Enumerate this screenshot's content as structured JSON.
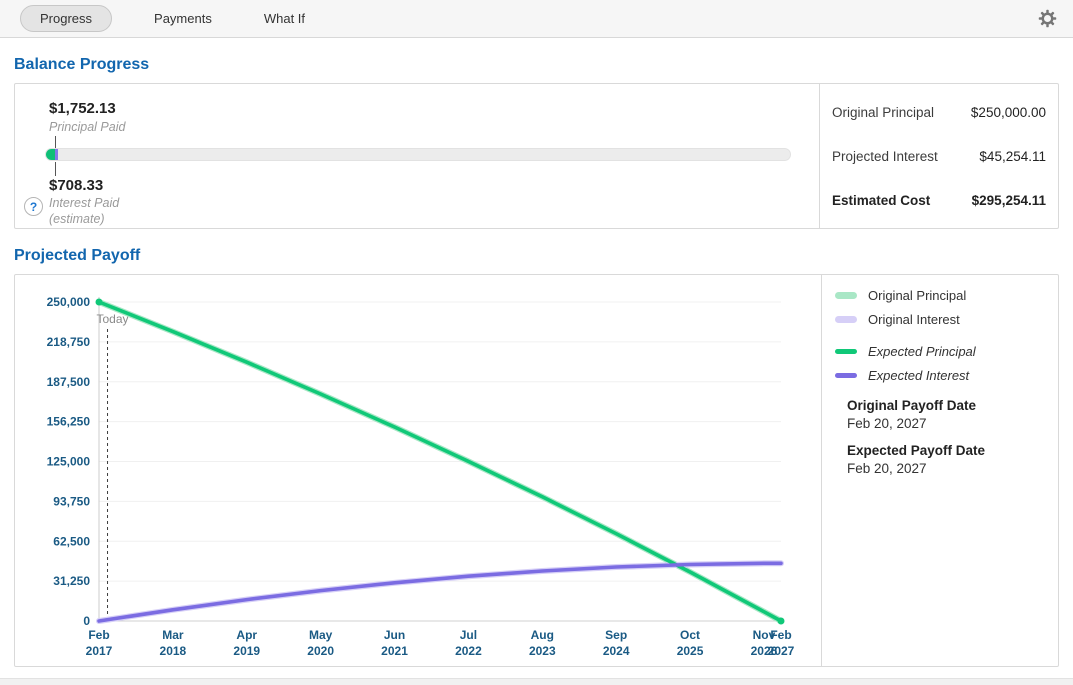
{
  "topbar": {
    "tabs": [
      {
        "label": "Progress",
        "active": true
      },
      {
        "label": "Payments",
        "active": false
      },
      {
        "label": "What If",
        "active": false
      }
    ],
    "gear_icon": "settings-gear"
  },
  "balance_progress": {
    "title": "Balance Progress",
    "principal_paid": {
      "value": "$1,752.13",
      "label": "Principal Paid"
    },
    "interest_paid": {
      "value": "$708.33",
      "label": "Interest Paid",
      "label2": "(estimate)"
    },
    "help_icon": "?",
    "bar_colors": {
      "principal": "#0fbf77",
      "interest": "#8479e8",
      "track": "#ececec"
    },
    "summary": [
      {
        "label": "Original Principal",
        "value": "$250,000.00",
        "bold": false
      },
      {
        "label": "Projected Interest",
        "value": "$45,254.11",
        "bold": false
      },
      {
        "label": "Estimated Cost",
        "value": "$295,254.11",
        "bold": true
      }
    ]
  },
  "projected_payoff": {
    "title": "Projected Payoff",
    "legend": [
      {
        "label": "Original Principal",
        "color": "#a9e7c6",
        "style": "original"
      },
      {
        "label": "Original Interest",
        "color": "#d6cff7",
        "style": "original"
      },
      {
        "label": "Expected Principal",
        "color": "#10c878",
        "style": "expected"
      },
      {
        "label": "Expected Interest",
        "color": "#7b6ce2",
        "style": "expected"
      }
    ],
    "original_payoff": {
      "label": "Original Payoff Date",
      "value": "Feb 20, 2027"
    },
    "expected_payoff": {
      "label": "Expected Payoff Date",
      "value": "Feb 20, 2027"
    }
  },
  "chart_data": {
    "type": "line",
    "xlabel": "",
    "ylabel": "",
    "ylim": [
      0,
      250000
    ],
    "grid": true,
    "legend_position": "right",
    "today_label": "Today",
    "today_month": 1.5,
    "x_total_months": 120,
    "x_tick_months": [
      0,
      13,
      26,
      39,
      52,
      65,
      78,
      91,
      104,
      117,
      120
    ],
    "x_ticks": [
      {
        "month": 0,
        "line1": "Feb",
        "line2": "2017"
      },
      {
        "month": 13,
        "line1": "Mar",
        "line2": "2018"
      },
      {
        "month": 26,
        "line1": "Apr",
        "line2": "2019"
      },
      {
        "month": 39,
        "line1": "May",
        "line2": "2020"
      },
      {
        "month": 52,
        "line1": "Jun",
        "line2": "2021"
      },
      {
        "month": 65,
        "line1": "Jul",
        "line2": "2022"
      },
      {
        "month": 78,
        "line1": "Aug",
        "line2": "2023"
      },
      {
        "month": 91,
        "line1": "Sep",
        "line2": "2024"
      },
      {
        "month": 104,
        "line1": "Oct",
        "line2": "2025"
      },
      {
        "month": 117,
        "line1": "Nov",
        "line2": "2026"
      },
      {
        "month": 120,
        "line1": "Feb",
        "line2": "2027"
      }
    ],
    "y_ticks": [
      {
        "value": 250000,
        "label": "250,000"
      },
      {
        "value": 218750,
        "label": "218,750"
      },
      {
        "value": 187500,
        "label": "187,500"
      },
      {
        "value": 156250,
        "label": "156,250"
      },
      {
        "value": 125000,
        "label": "125,000"
      },
      {
        "value": 93750,
        "label": "93,750"
      },
      {
        "value": 62500,
        "label": "62,500"
      },
      {
        "value": 31250,
        "label": "31,250"
      },
      {
        "value": 0,
        "label": "0"
      }
    ],
    "series": [
      {
        "name": "Original Principal",
        "color": "#a9e7c6",
        "width": 6,
        "values": [
          250000,
          226800,
          202800,
          177900,
          152000,
          125100,
          97300,
          68400,
          38400,
          7300,
          0
        ]
      },
      {
        "name": "Original Interest",
        "color": "#d6cff7",
        "width": 6,
        "values": [
          0,
          8800,
          16800,
          23800,
          29900,
          35100,
          39200,
          42300,
          44300,
          45200,
          45254
        ]
      },
      {
        "name": "Expected Principal",
        "color": "#10c878",
        "width": 3.6,
        "values": [
          250000,
          226800,
          202800,
          177900,
          152000,
          125100,
          97300,
          68400,
          38400,
          7300,
          0
        ]
      },
      {
        "name": "Expected Interest",
        "color": "#7b6ce2",
        "width": 3.6,
        "values": [
          0,
          8800,
          16800,
          23800,
          29900,
          35100,
          39200,
          42300,
          44300,
          45200,
          45254
        ]
      }
    ],
    "axis_label_color": "#1a5a84"
  }
}
